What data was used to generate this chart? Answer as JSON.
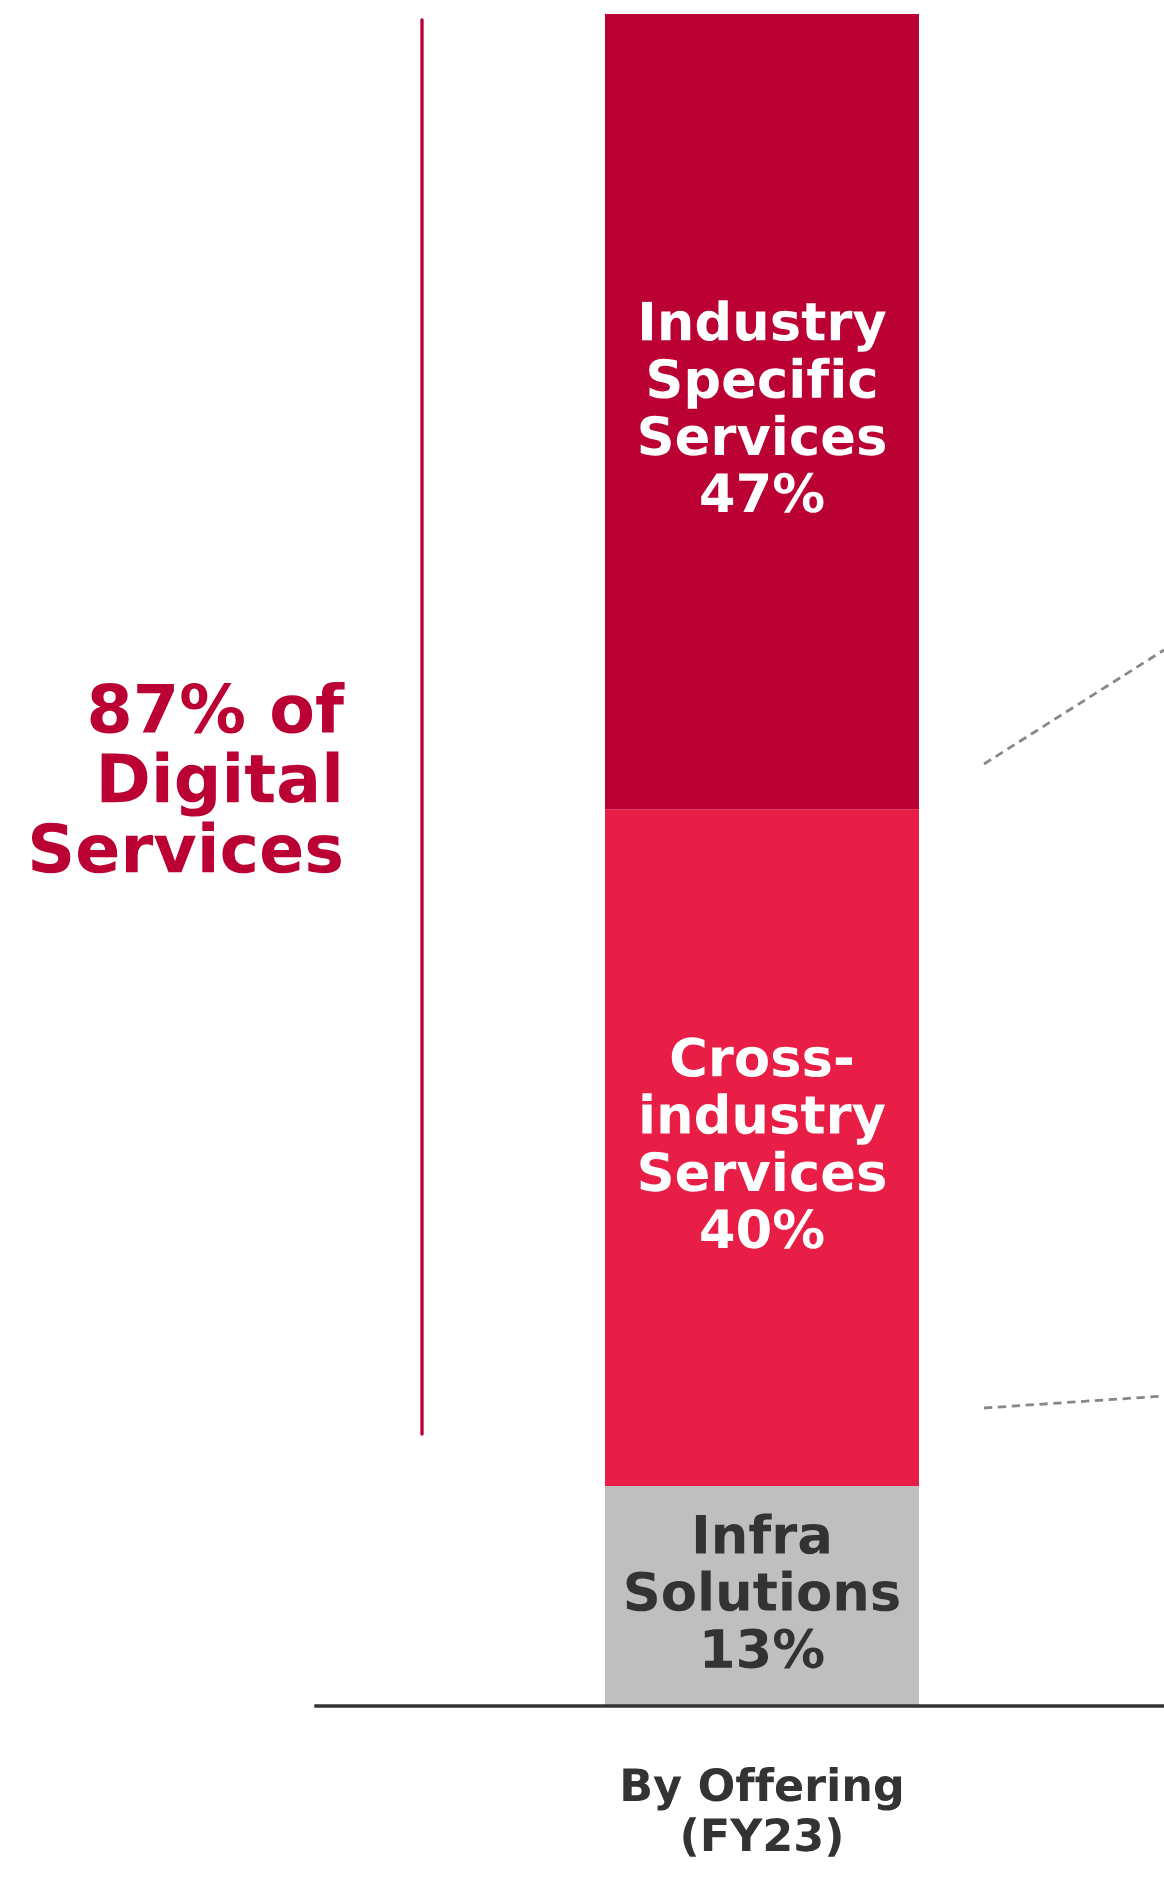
{
  "chart_data": {
    "type": "bar",
    "stacked": true,
    "categories": [
      "By Offering\n(FY23)"
    ],
    "series": [
      {
        "name": "Infra\nSolutions",
        "color": "#bfbfbf",
        "values": [
          13
        ],
        "value_labels": [
          "13%"
        ]
      },
      {
        "name": "Cross-\nindustry\nServices",
        "color": "#e91e46",
        "values": [
          40
        ],
        "value_labels": [
          "40%"
        ]
      },
      {
        "name": "Industry\nSpecific\nServices",
        "color": "#bb0033",
        "values": [
          47
        ],
        "value_labels": [
          "47%"
        ]
      }
    ],
    "ylim": [
      0,
      100
    ],
    "tick_labels": "x",
    "grid": false,
    "legend": false,
    "annotations": [
      "87% of\nDigital\nServices"
    ]
  }
}
